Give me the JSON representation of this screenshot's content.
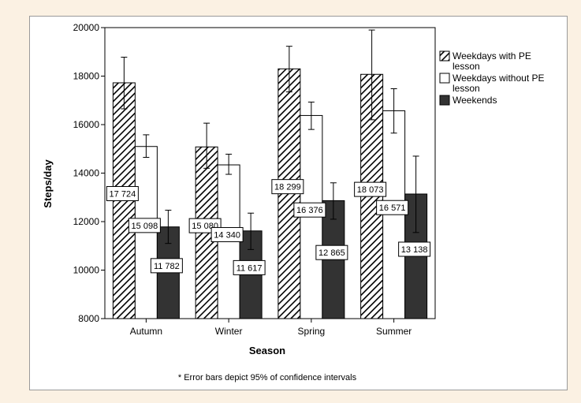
{
  "chart_data": {
    "type": "bar",
    "xlabel": "Season",
    "ylabel": "Steps/day",
    "ylim": [
      8000,
      20000
    ],
    "yticks": [
      "8000",
      "10000",
      "12000",
      "14000",
      "16000",
      "18000",
      "20000"
    ],
    "yticks_values": [
      8000,
      10000,
      12000,
      14000,
      16000,
      18000,
      20000
    ],
    "categories": [
      "Autumn",
      "Winter",
      "Spring",
      "Summer"
    ],
    "series": [
      {
        "name": "Weekdays with PE lesson",
        "values": [
          17724,
          15080,
          18299,
          18073
        ],
        "labels": [
          "17 724",
          "15 080",
          "18 299",
          "18 073"
        ],
        "ci_low": [
          16650,
          14200,
          17350,
          16200
        ],
        "ci_high": [
          18780,
          16060,
          19230,
          19900
        ],
        "style": "hatched"
      },
      {
        "name": "Weekdays without PE lesson",
        "values": [
          15098,
          14340,
          16376,
          16571
        ],
        "labels": [
          "15 098",
          "14 340",
          "16 376",
          "16 571"
        ],
        "ci_low": [
          14650,
          13950,
          15800,
          15650
        ],
        "ci_high": [
          15580,
          14780,
          16930,
          17480
        ],
        "style": "white"
      },
      {
        "name": "Weekends",
        "values": [
          11782,
          11617,
          12865,
          13138
        ],
        "labels": [
          "11 782",
          "11 617",
          "12 865",
          "13 138"
        ],
        "ci_low": [
          11100,
          10850,
          12100,
          11550
        ],
        "ci_high": [
          12470,
          12350,
          13600,
          14700
        ],
        "style": "dark"
      }
    ],
    "legend": {
      "placement": "right",
      "entries": [
        [
          "Weekdays with PE",
          "lesson"
        ],
        [
          "Weekdays without PE",
          "lesson"
        ],
        [
          "Weekends"
        ]
      ]
    },
    "annotation": "* Error bars depict 95% of confidence intervals",
    "grid": false
  },
  "colors": {
    "page_background": "#fbf1e3",
    "frame": "#ffffff",
    "dark_bar": "#333333",
    "white_bar": "#ffffff",
    "hatch": "#000000"
  }
}
